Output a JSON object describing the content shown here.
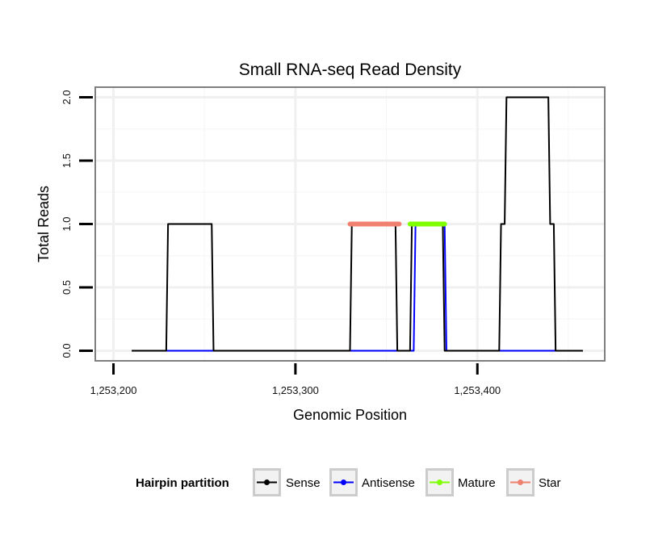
{
  "chart_data": {
    "type": "line",
    "title": "Small RNA-seq Read Density",
    "xlabel": "Genomic Position",
    "ylabel": "Total Reads",
    "xlim": [
      1253190,
      1253470
    ],
    "ylim": [
      -0.08,
      2.08
    ],
    "x_ticks": [
      1253200,
      1253300,
      1253400
    ],
    "x_tick_labels": [
      "1,253,200",
      "1,253,300",
      "1,253,400"
    ],
    "y_ticks": [
      0,
      0.5,
      1,
      1.5,
      2
    ],
    "y_tick_labels": [
      "0.0",
      "0.5",
      "1.0",
      "1.5",
      "2.0"
    ],
    "grid": true,
    "series": [
      {
        "name": "Sense",
        "color": "#000000",
        "x": [
          1253210,
          1253229,
          1253230,
          1253254,
          1253255,
          1253330,
          1253331,
          1253355,
          1253356,
          1253363,
          1253364,
          1253381,
          1253382,
          1253412,
          1253413,
          1253415,
          1253416,
          1253439,
          1253440,
          1253442,
          1253443,
          1253458
        ],
        "y": [
          0,
          0,
          1,
          1,
          0,
          0,
          1,
          1,
          0,
          0,
          1,
          1,
          0,
          0,
          1,
          1,
          2,
          2,
          1,
          1,
          0,
          0
        ]
      },
      {
        "name": "Antisense",
        "color": "#0000FF",
        "x": [
          1253229,
          1253365,
          1253366,
          1253382,
          1253383,
          1253443
        ],
        "y": [
          0,
          0,
          1,
          1,
          0,
          0
        ]
      },
      {
        "name": "Mature",
        "color": "#7FFF00",
        "x": [
          1253363,
          1253382
        ],
        "y": [
          1,
          1
        ]
      },
      {
        "name": "Star",
        "color": "#F08070",
        "x": [
          1253330,
          1253357
        ],
        "y": [
          1,
          1
        ]
      }
    ],
    "legend": {
      "title": "Hairpin partition",
      "position": "bottom",
      "entries": [
        "Sense",
        "Antisense",
        "Mature",
        "Star"
      ]
    }
  }
}
